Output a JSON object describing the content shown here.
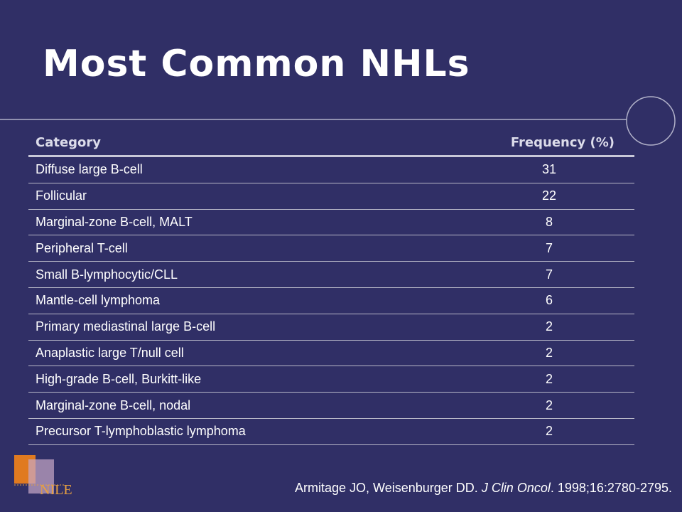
{
  "title": "Most Common NHLs",
  "table": {
    "header": [
      "Category",
      "Frequency (%)"
    ],
    "rows": [
      [
        "Diffuse large B-cell",
        31
      ],
      [
        "Follicular",
        22
      ],
      [
        "Marginal-zone B-cell, MALT",
        8
      ],
      [
        "Peripheral T-cell",
        7
      ],
      [
        "Small B-lymphocytic/CLL",
        7
      ],
      [
        "Mantle-cell lymphoma",
        6
      ],
      [
        "Primary mediastinal large B-cell",
        2
      ],
      [
        "Anaplastic large T/null cell",
        2
      ],
      [
        "High-grade B-cell, Burkitt-like",
        2
      ],
      [
        "Marginal-zone B-cell, nodal",
        2
      ],
      [
        "Precursor T-lymphoblastic lymphoma",
        2
      ]
    ]
  },
  "citation": [
    "Armitage JO, Weisenburger DD.",
    "J Clin Oncol",
    ". 1998;16:2780-2795."
  ],
  "logo": "NILE"
}
